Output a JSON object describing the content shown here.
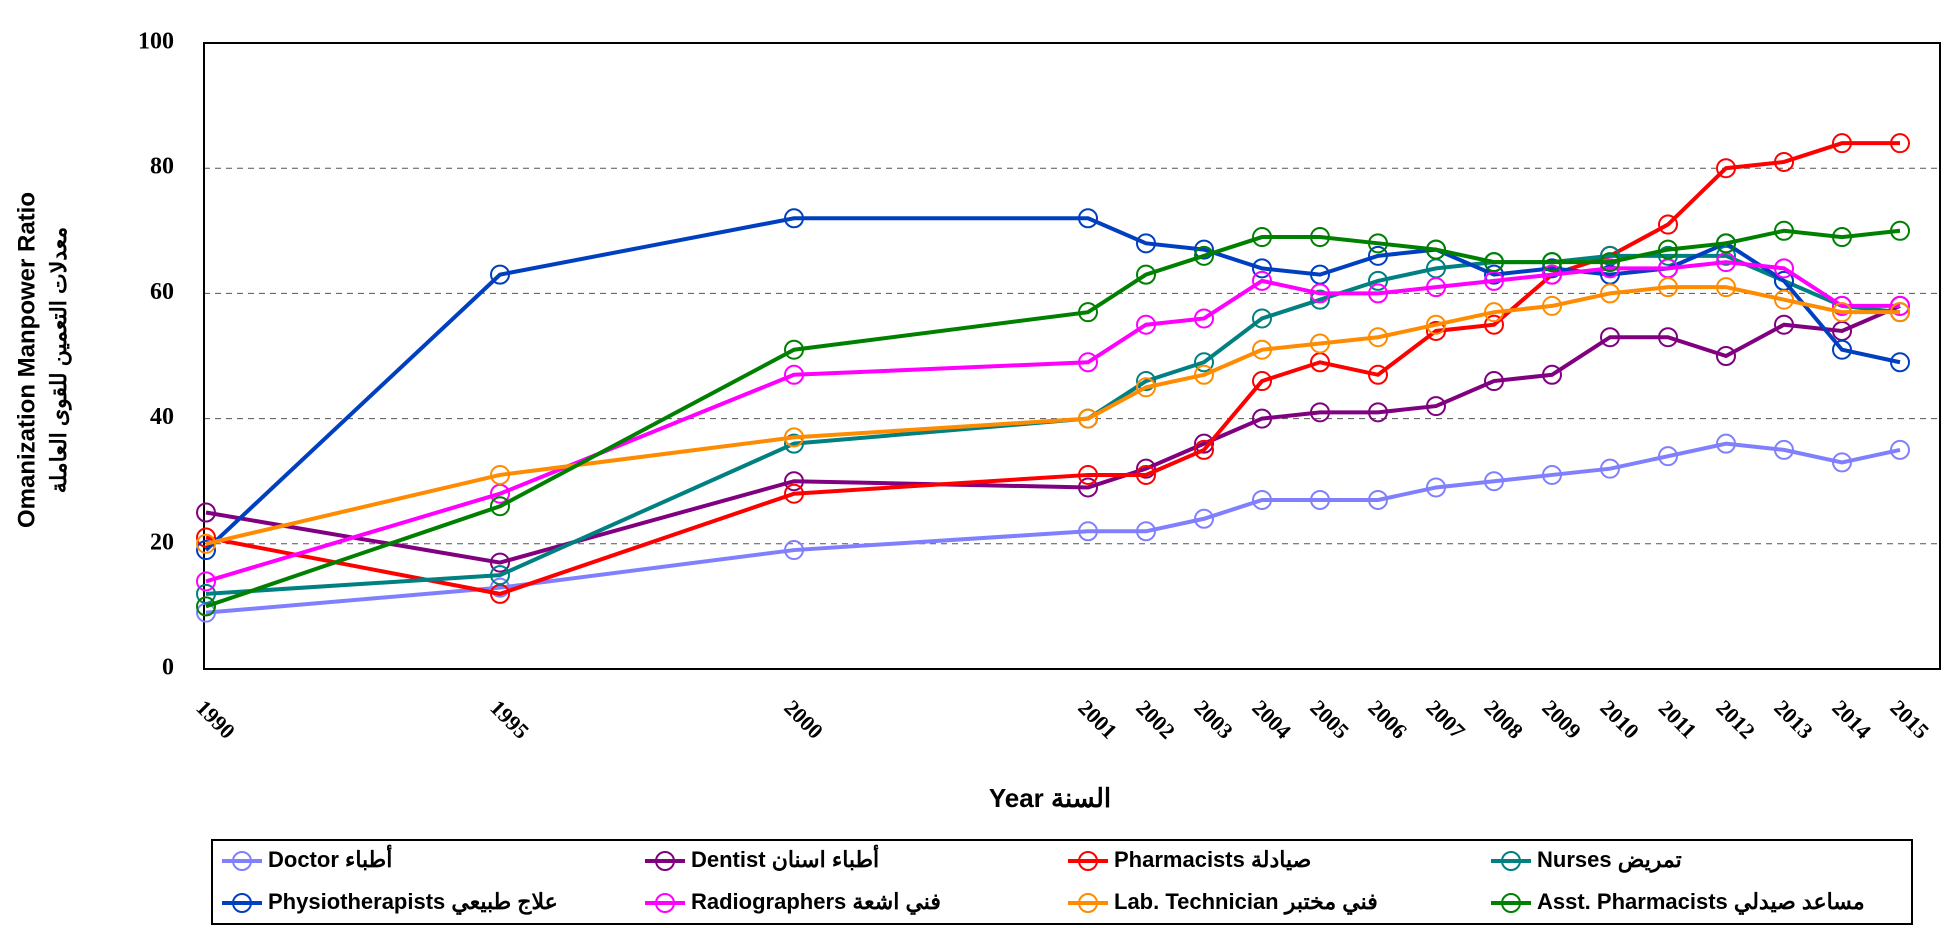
{
  "chart_data": {
    "type": "line",
    "y_label": "Omanization Manpower Ratio",
    "y_label_ar": "معدلات التعمين للقوى العاملة",
    "x_label": "Year السنة",
    "categories": [
      "1990",
      "1995",
      "2000",
      "2001",
      "2002",
      "2003",
      "2004",
      "2005",
      "2006",
      "2007",
      "2008",
      "2009",
      "2010",
      "2011",
      "2012",
      "2013",
      "2014",
      "2015"
    ],
    "ylim": [
      0,
      100
    ],
    "yticks": [
      0,
      20,
      40,
      60,
      80,
      100
    ],
    "grid": true,
    "series": [
      {
        "name": "Doctor أطباء",
        "color": "#8080ff",
        "values": [
          9,
          13,
          19,
          22,
          22,
          24,
          27,
          27,
          27,
          29,
          30,
          31,
          32,
          34,
          36,
          35,
          33,
          35
        ]
      },
      {
        "name": "Dentist أطباء اسنان",
        "color": "#800080",
        "values": [
          25,
          17,
          30,
          29,
          32,
          36,
          40,
          41,
          41,
          42,
          46,
          47,
          53,
          53,
          50,
          55,
          54,
          58
        ]
      },
      {
        "name": "Pharmacists صيادلة",
        "color": "#ff0000",
        "values": [
          21,
          12,
          28,
          31,
          31,
          35,
          46,
          49,
          47,
          54,
          55,
          63,
          66,
          71,
          80,
          81,
          84,
          84
        ]
      },
      {
        "name": "Nurses تمريض",
        "color": "#008080",
        "values": [
          12,
          15,
          36,
          40,
          46,
          49,
          56,
          59,
          62,
          64,
          65,
          65,
          66,
          66,
          66,
          62,
          58,
          57
        ]
      },
      {
        "name": "Physiotherapists علاج طبيعي",
        "color": "#0040c0",
        "values": [
          19,
          63,
          72,
          72,
          68,
          67,
          64,
          63,
          66,
          67,
          63,
          64,
          63,
          64,
          68,
          62,
          51,
          49
        ]
      },
      {
        "name": "Radiographers فني اشعة",
        "color": "#ff00ff",
        "values": [
          14,
          28,
          47,
          49,
          55,
          56,
          62,
          60,
          60,
          61,
          62,
          63,
          64,
          64,
          65,
          64,
          58,
          58
        ]
      },
      {
        "name": "Lab. Technician فني مختبر",
        "color": "#ff8c00",
        "values": [
          20,
          31,
          37,
          40,
          45,
          47,
          51,
          52,
          53,
          55,
          57,
          58,
          60,
          61,
          61,
          59,
          57,
          57
        ]
      },
      {
        "name": "Asst. Pharmacists مساعد صيدلي",
        "color": "#008000",
        "values": [
          10,
          26,
          51,
          57,
          63,
          66,
          69,
          69,
          68,
          67,
          65,
          65,
          65,
          67,
          68,
          70,
          69,
          70
        ]
      }
    ]
  }
}
